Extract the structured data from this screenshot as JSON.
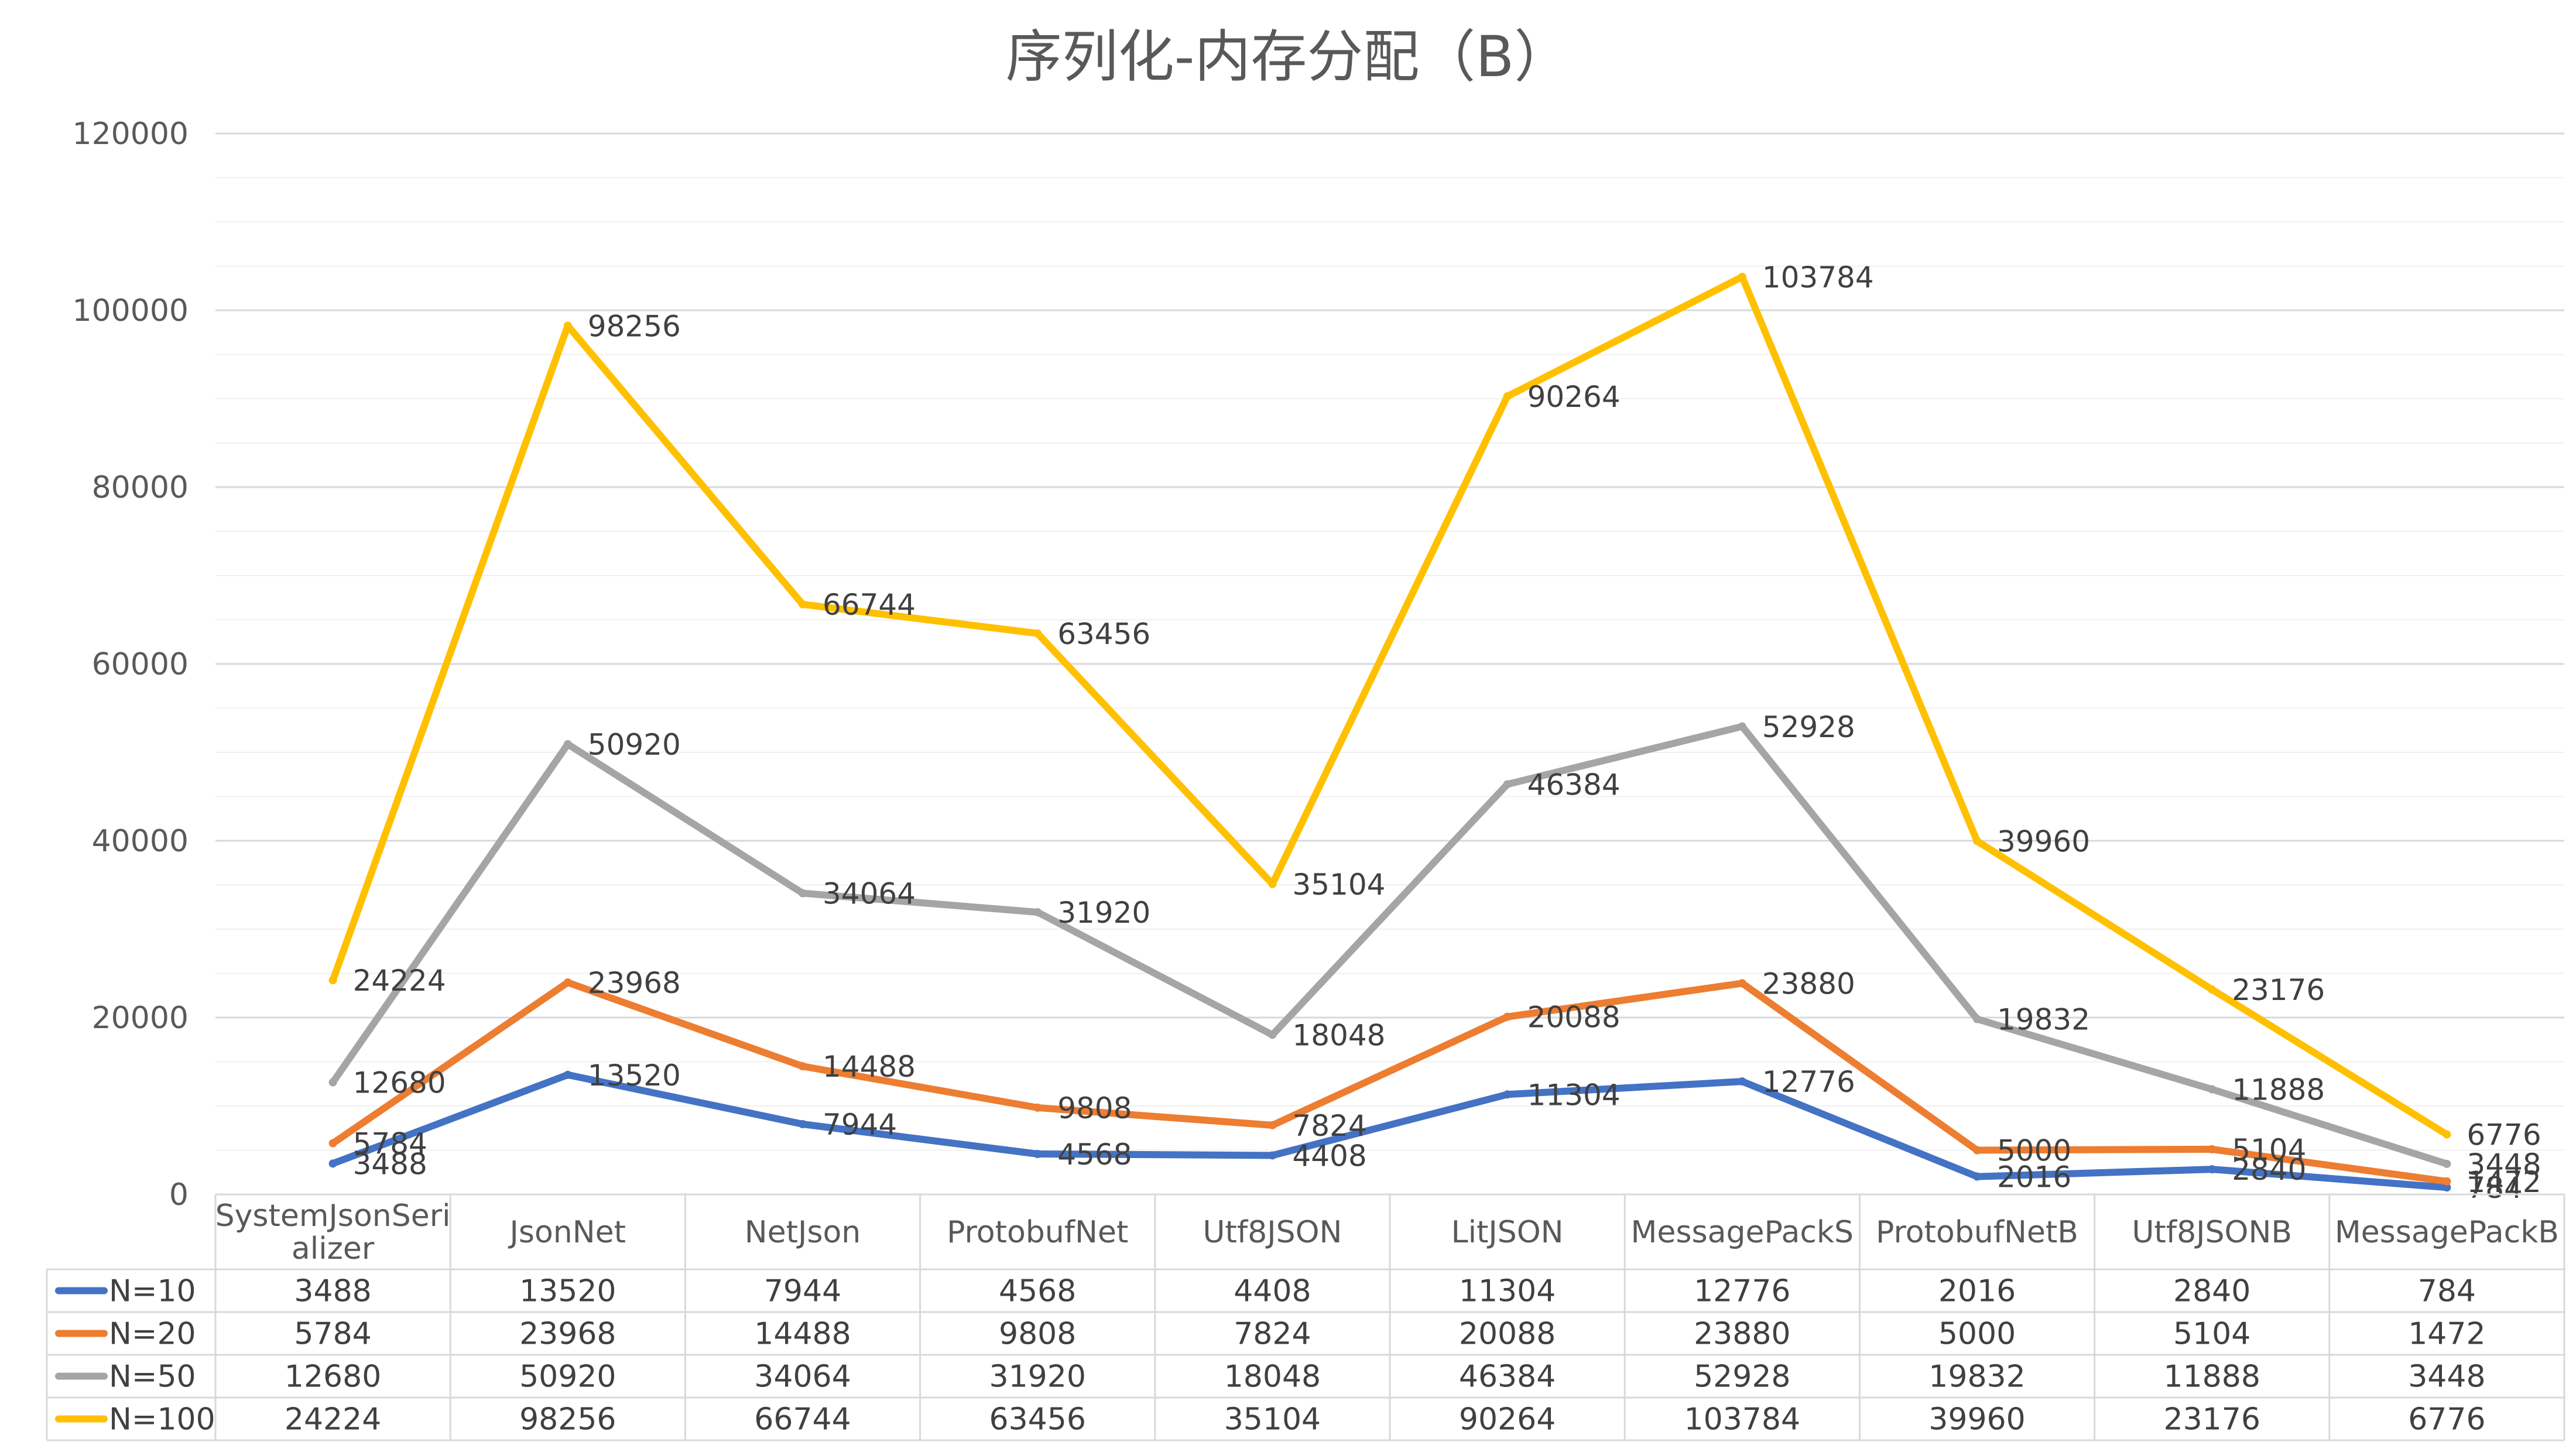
{
  "chart_data": {
    "type": "line",
    "title": "序列化-内存分配（B）",
    "xlabel": "",
    "ylabel": "",
    "ylim": [
      0,
      120000
    ],
    "yticks": [
      0,
      20000,
      40000,
      60000,
      80000,
      100000,
      120000
    ],
    "grid": true,
    "legend": "data-table-left",
    "categories": [
      [
        "SystemJsonSeri",
        "alizer"
      ],
      [
        "JsonNet"
      ],
      [
        "NetJson"
      ],
      [
        "ProtobufNet"
      ],
      [
        "Utf8JSON"
      ],
      [
        "LitJSON"
      ],
      [
        "MessagePackS"
      ],
      [
        "ProtobufNetB"
      ],
      [
        "Utf8JSONB"
      ],
      [
        "MessagePackB"
      ]
    ],
    "series": [
      {
        "name": "N=10",
        "color": "#4472C4",
        "values": [
          3488,
          13520,
          7944,
          4568,
          4408,
          11304,
          12776,
          2016,
          2840,
          784
        ]
      },
      {
        "name": "N=20",
        "color": "#ED7D31",
        "values": [
          5784,
          23968,
          14488,
          9808,
          7824,
          20088,
          23880,
          5000,
          5104,
          1472
        ]
      },
      {
        "name": "N=50",
        "color": "#A5A5A5",
        "values": [
          12680,
          50920,
          34064,
          31920,
          18048,
          46384,
          52928,
          19832,
          11888,
          3448
        ]
      },
      {
        "name": "N=100",
        "color": "#FFC000",
        "values": [
          24224,
          98256,
          66744,
          63456,
          35104,
          90264,
          103784,
          39960,
          23176,
          6776
        ]
      }
    ]
  }
}
